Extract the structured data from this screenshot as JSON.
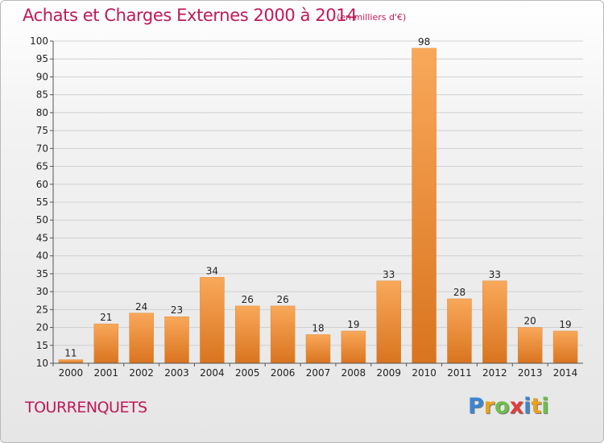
{
  "chart_data": {
    "type": "bar",
    "title": "Achats et Charges Externes 2000 à 2014",
    "subtitle": "(en milliers d'€)",
    "categories": [
      "2000",
      "2001",
      "2002",
      "2003",
      "2004",
      "2005",
      "2006",
      "2007",
      "2008",
      "2009",
      "2010",
      "2011",
      "2012",
      "2013",
      "2014"
    ],
    "values": [
      11,
      21,
      24,
      23,
      34,
      26,
      26,
      18,
      19,
      33,
      98,
      28,
      33,
      20,
      19
    ],
    "ylim": [
      10,
      100
    ],
    "yticks": [
      10,
      15,
      20,
      25,
      30,
      35,
      40,
      45,
      50,
      55,
      60,
      65,
      70,
      75,
      80,
      85,
      90,
      95,
      100
    ],
    "grid": true,
    "colors": {
      "bar_light": "#f9a85a",
      "bar_dark": "#d9741f",
      "grid": "#d0d0d0",
      "title": "#c1185a"
    }
  },
  "footer": {
    "commune": "TOURRENQUETS",
    "logo_letters": [
      {
        "ch": "P",
        "color": "#3a86d4"
      },
      {
        "ch": "r",
        "color": "#e8a21c"
      },
      {
        "ch": "o",
        "color": "#6cc04a"
      },
      {
        "ch": "x",
        "color": "#e23b3b"
      },
      {
        "ch": "i",
        "color": "#3a86d4"
      },
      {
        "ch": "t",
        "color": "#e8a21c"
      },
      {
        "ch": "i",
        "color": "#6cc04a"
      }
    ]
  }
}
